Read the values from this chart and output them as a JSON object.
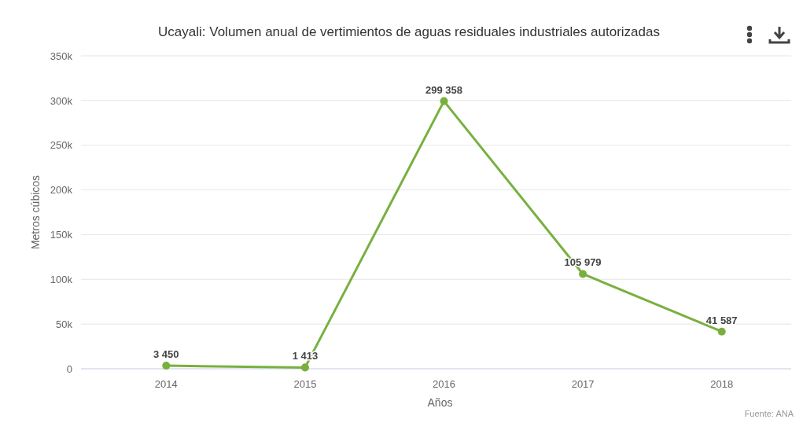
{
  "chart_data": {
    "type": "line",
    "title": "Ucayali: Volumen anual de vertimientos de aguas residuales industriales autorizadas",
    "xlabel": "Años",
    "ylabel": "Metros cúbicos",
    "categories": [
      "2014",
      "2015",
      "2016",
      "2017",
      "2018"
    ],
    "series": [
      {
        "color": "#78b040",
        "values": [
          3450,
          1413,
          299358,
          105979,
          41587
        ],
        "value_labels": [
          "3 450",
          "1 413",
          "299 358",
          "105 979",
          "41 587"
        ]
      }
    ],
    "ylim": [
      0,
      350000
    ],
    "yticks": [
      {
        "value": 0,
        "label": "0"
      },
      {
        "value": 50000,
        "label": "50k"
      },
      {
        "value": 100000,
        "label": "100k"
      },
      {
        "value": 150000,
        "label": "150k"
      },
      {
        "value": 200000,
        "label": "200k"
      },
      {
        "value": 250000,
        "label": "250k"
      },
      {
        "value": 300000,
        "label": "300k"
      },
      {
        "value": 350000,
        "label": "350k"
      }
    ],
    "grid": "y",
    "marker": "circle",
    "line_style": "solid",
    "annotations": [
      "Fuente: ANA"
    ]
  }
}
